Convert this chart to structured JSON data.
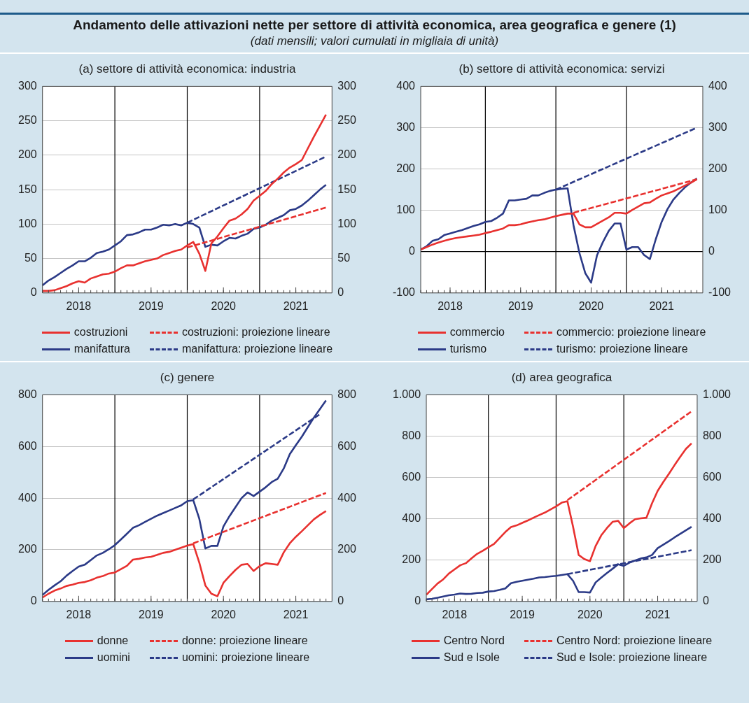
{
  "chart_data": [
    {
      "type": "other",
      "title": "Andamento delle attivazioni nette per settore di attività economica, area geografica e genere (1)",
      "subtitle": "(dati mensili; valori cumulati in migliaia di unità)"
    },
    {
      "type": "line",
      "title": "(a) settore di attività economica: industria",
      "x": [
        "2018-01",
        "2018-02",
        "2018-03",
        "2018-04",
        "2018-05",
        "2018-06",
        "2018-07",
        "2018-08",
        "2018-09",
        "2018-10",
        "2018-11",
        "2018-12",
        "2019-01",
        "2019-02",
        "2019-03",
        "2019-04",
        "2019-05",
        "2019-06",
        "2019-07",
        "2019-08",
        "2019-09",
        "2019-10",
        "2019-11",
        "2019-12",
        "2020-01",
        "2020-02",
        "2020-03",
        "2020-04",
        "2020-05",
        "2020-06",
        "2020-07",
        "2020-08",
        "2020-09",
        "2020-10",
        "2020-11",
        "2020-12",
        "2021-01",
        "2021-02",
        "2021-03",
        "2021-04",
        "2021-05",
        "2021-06",
        "2021-07",
        "2021-08",
        "2021-09",
        "2021-10",
        "2021-11",
        "2021-12"
      ],
      "xlim": [
        "2018-01",
        "2022-01"
      ],
      "xticks": [
        {
          "value": "2018-07",
          "label": "2018"
        },
        {
          "value": "2019-07",
          "label": "2019"
        },
        {
          "value": "2020-07",
          "label": "2020"
        },
        {
          "value": "2021-07",
          "label": "2021"
        }
      ],
      "ylim": [
        0,
        300
      ],
      "yticks": [
        0,
        50,
        100,
        150,
        200,
        250,
        300
      ],
      "y2lim": [
        0,
        300
      ],
      "y2ticks": [
        0,
        50,
        100,
        150,
        200,
        250,
        300
      ],
      "grid": "y",
      "legend": "bottom",
      "ref_lines": [
        {
          "axis": "x",
          "value": "2019-01",
          "color": "#000000"
        },
        {
          "axis": "x",
          "value": "2020-01",
          "color": "#000000"
        },
        {
          "axis": "x",
          "value": "2021-01",
          "color": "#000000"
        }
      ],
      "series": [
        {
          "name": "costruzioni",
          "color": "#e8312f",
          "values": [
            3,
            3,
            4,
            7,
            10,
            14,
            17,
            15,
            21,
            24,
            27,
            28,
            31,
            36,
            40,
            40,
            43,
            46,
            48,
            50,
            55,
            58,
            61,
            63,
            69,
            74,
            57,
            32,
            72,
            82,
            94,
            105,
            108,
            114,
            122,
            134,
            141,
            148,
            158,
            166,
            175,
            182,
            187,
            193,
            210,
            227,
            243,
            259
          ]
        },
        {
          "name": "costruzioni: proiezione lineare",
          "color": "#e8312f",
          "line_style": "dashed",
          "x": [
            "2020-01",
            "2021-12"
          ],
          "values": [
            66,
            124
          ]
        },
        {
          "name": "manifattura",
          "color": "#2b3a87",
          "values": [
            11,
            18,
            23,
            29,
            35,
            40,
            46,
            46,
            51,
            58,
            60,
            63,
            69,
            75,
            84,
            85,
            88,
            92,
            92,
            95,
            99,
            98,
            100,
            98,
            102,
            100,
            95,
            67,
            70,
            69,
            75,
            80,
            79,
            83,
            86,
            93,
            95,
            99,
            105,
            109,
            113,
            120,
            122,
            127,
            134,
            142,
            150,
            157
          ]
        },
        {
          "name": "manifattura: proiezione lineare",
          "color": "#2b3a87",
          "line_style": "dashed",
          "x": [
            "2020-01",
            "2021-12"
          ],
          "values": [
            102,
            198
          ]
        }
      ]
    },
    {
      "type": "line",
      "title": "(b) settore di attività economica: servizi",
      "x": [
        "2018-02",
        "2018-03",
        "2018-04",
        "2018-05",
        "2018-06",
        "2018-07",
        "2018-08",
        "2018-09",
        "2018-10",
        "2018-11",
        "2018-12",
        "2019-01",
        "2019-02",
        "2019-03",
        "2019-04",
        "2019-05",
        "2019-06",
        "2019-07",
        "2019-08",
        "2019-09",
        "2019-10",
        "2019-11",
        "2019-12",
        "2020-01",
        "2020-02",
        "2020-03",
        "2020-04",
        "2020-05",
        "2020-06",
        "2020-07",
        "2020-08",
        "2020-09",
        "2020-10",
        "2020-11",
        "2020-12",
        "2021-01",
        "2021-02",
        "2021-03",
        "2021-04",
        "2021-05",
        "2021-06",
        "2021-07",
        "2021-08",
        "2021-09",
        "2021-10",
        "2021-11",
        "2021-12",
        "2022-01"
      ],
      "xlim": [
        "2018-02",
        "2022-02"
      ],
      "xticks": [
        {
          "value": "2018-07",
          "label": "2018"
        },
        {
          "value": "2019-07",
          "label": "2019"
        },
        {
          "value": "2020-07",
          "label": "2020"
        },
        {
          "value": "2021-07",
          "label": "2021"
        }
      ],
      "ylim": [
        -100,
        400
      ],
      "yticks": [
        -100,
        0,
        100,
        200,
        300,
        400
      ],
      "y2lim": [
        -100,
        400
      ],
      "y2ticks": [
        -100,
        0,
        100,
        200,
        300,
        400
      ],
      "grid": "y",
      "legend": "bottom",
      "ref_lines": [
        {
          "axis": "x",
          "value": "2019-01",
          "color": "#000000"
        },
        {
          "axis": "x",
          "value": "2020-01",
          "color": "#000000"
        },
        {
          "axis": "x",
          "value": "2021-01",
          "color": "#000000"
        },
        {
          "axis": "y",
          "value": 0,
          "color": "#000000"
        }
      ],
      "series": [
        {
          "name": "commercio",
          "color": "#e8312f",
          "values": [
            5,
            11,
            17,
            22,
            26,
            30,
            33,
            35,
            37,
            39,
            41,
            45,
            48,
            52,
            56,
            64,
            64,
            66,
            70,
            73,
            76,
            78,
            82,
            86,
            89,
            92,
            92,
            66,
            59,
            59,
            67,
            75,
            83,
            94,
            94,
            92,
            101,
            109,
            117,
            119,
            128,
            136,
            141,
            146,
            153,
            160,
            167,
            175
          ]
        },
        {
          "name": "commercio: proiezione lineare",
          "color": "#e8312f",
          "line_style": "dashed",
          "x": [
            "2020-04",
            "2022-01"
          ],
          "values": [
            94,
            175
          ]
        },
        {
          "name": "turismo",
          "color": "#2b3a87",
          "values": [
            5,
            13,
            26,
            30,
            40,
            44,
            48,
            52,
            57,
            62,
            66,
            72,
            74,
            82,
            92,
            124,
            124,
            126,
            128,
            136,
            136,
            142,
            147,
            150,
            152,
            153,
            64,
            -3,
            -52,
            -75,
            -9,
            23,
            50,
            68,
            68,
            5,
            11,
            11,
            -8,
            -18,
            30,
            72,
            103,
            126,
            142,
            156,
            167,
            177
          ]
        },
        {
          "name": "turismo: proiezione lineare",
          "color": "#2b3a87",
          "line_style": "dashed",
          "x": [
            "2020-01",
            "2022-01"
          ],
          "values": [
            150,
            300
          ]
        }
      ]
    },
    {
      "type": "line",
      "title": "(c) genere",
      "x": [
        "2018-01",
        "2018-02",
        "2018-03",
        "2018-04",
        "2018-05",
        "2018-06",
        "2018-07",
        "2018-08",
        "2018-09",
        "2018-10",
        "2018-11",
        "2018-12",
        "2019-01",
        "2019-02",
        "2019-03",
        "2019-04",
        "2019-05",
        "2019-06",
        "2019-07",
        "2019-08",
        "2019-09",
        "2019-10",
        "2019-11",
        "2019-12",
        "2020-01",
        "2020-02",
        "2020-03",
        "2020-04",
        "2020-05",
        "2020-06",
        "2020-07",
        "2020-08",
        "2020-09",
        "2020-10",
        "2020-11",
        "2020-12",
        "2021-01",
        "2021-02",
        "2021-03",
        "2021-04",
        "2021-05",
        "2021-06",
        "2021-07",
        "2021-08",
        "2021-09",
        "2021-10",
        "2021-11",
        "2021-12"
      ],
      "xlim": [
        "2018-01",
        "2022-01"
      ],
      "xticks": [
        {
          "value": "2018-07",
          "label": "2018"
        },
        {
          "value": "2019-07",
          "label": "2019"
        },
        {
          "value": "2020-07",
          "label": "2020"
        },
        {
          "value": "2021-07",
          "label": "2021"
        }
      ],
      "ylim": [
        0,
        800
      ],
      "yticks": [
        0,
        200,
        400,
        600,
        800
      ],
      "y2lim": [
        0,
        800
      ],
      "y2ticks": [
        0,
        200,
        400,
        600,
        800
      ],
      "grid": "y",
      "legend": "bottom",
      "ref_lines": [
        {
          "axis": "x",
          "value": "2019-01",
          "color": "#000000"
        },
        {
          "axis": "x",
          "value": "2020-01",
          "color": "#000000"
        },
        {
          "axis": "x",
          "value": "2021-01",
          "color": "#000000"
        }
      ],
      "series": [
        {
          "name": "donne",
          "color": "#e8312f",
          "values": [
            15,
            30,
            42,
            50,
            60,
            65,
            72,
            75,
            82,
            92,
            98,
            108,
            112,
            125,
            138,
            162,
            165,
            170,
            173,
            180,
            188,
            192,
            200,
            208,
            216,
            222,
            150,
            62,
            30,
            20,
            72,
            98,
            122,
            142,
            145,
            118,
            137,
            148,
            145,
            142,
            190,
            225,
            250,
            272,
            295,
            318,
            335,
            350
          ]
        },
        {
          "name": "donne: proiezione lineare",
          "color": "#e8312f",
          "line_style": "dashed",
          "x": [
            "2020-02",
            "2021-12"
          ],
          "values": [
            225,
            420
          ]
        },
        {
          "name": "uomini",
          "color": "#2b3a87",
          "values": [
            25,
            45,
            62,
            78,
            100,
            118,
            135,
            142,
            160,
            178,
            188,
            202,
            218,
            240,
            262,
            285,
            295,
            308,
            320,
            332,
            342,
            352,
            362,
            372,
            388,
            392,
            320,
            205,
            215,
            215,
            290,
            330,
            365,
            400,
            422,
            408,
            425,
            442,
            462,
            475,
            515,
            570,
            605,
            638,
            675,
            712,
            745,
            778
          ]
        },
        {
          "name": "uomini: proiezione lineare",
          "color": "#2b3a87",
          "line_style": "dashed",
          "x": [
            "2020-02",
            "2021-11"
          ],
          "values": [
            395,
            725
          ]
        }
      ]
    },
    {
      "type": "line",
      "title": "(d) area geografica",
      "x": [
        "2018-02",
        "2018-03",
        "2018-04",
        "2018-05",
        "2018-06",
        "2018-07",
        "2018-08",
        "2018-09",
        "2018-10",
        "2018-11",
        "2018-12",
        "2019-01",
        "2019-02",
        "2019-03",
        "2019-04",
        "2019-05",
        "2019-06",
        "2019-07",
        "2019-08",
        "2019-09",
        "2019-10",
        "2019-11",
        "2019-12",
        "2020-01",
        "2020-02",
        "2020-03",
        "2020-04",
        "2020-05",
        "2020-06",
        "2020-07",
        "2020-08",
        "2020-09",
        "2020-10",
        "2020-11",
        "2020-12",
        "2021-01",
        "2021-02",
        "2021-03",
        "2021-04",
        "2021-05",
        "2021-06",
        "2021-07",
        "2021-08",
        "2021-09",
        "2021-10",
        "2021-11",
        "2021-12",
        "2022-01"
      ],
      "xlim": [
        "2018-02",
        "2022-02"
      ],
      "xticks": [
        {
          "value": "2018-07",
          "label": "2018"
        },
        {
          "value": "2019-07",
          "label": "2019"
        },
        {
          "value": "2020-07",
          "label": "2020"
        },
        {
          "value": "2021-07",
          "label": "2021"
        }
      ],
      "ylim": [
        0,
        1000
      ],
      "yticks": [
        0,
        200,
        400,
        600,
        800,
        {
          "value": 1000,
          "label": "1.000"
        }
      ],
      "y2lim": [
        0,
        1000
      ],
      "y2ticks": [
        0,
        200,
        400,
        600,
        800,
        {
          "value": 1000,
          "label": "1.000"
        }
      ],
      "grid": "y",
      "legend": "bottom",
      "ref_lines": [
        {
          "axis": "x",
          "value": "2019-01",
          "color": "#000000"
        },
        {
          "axis": "x",
          "value": "2020-01",
          "color": "#000000"
        },
        {
          "axis": "x",
          "value": "2021-01",
          "color": "#000000"
        }
      ],
      "series": [
        {
          "name": "Centro Nord",
          "color": "#e8312f",
          "values": [
            32,
            60,
            87,
            107,
            135,
            155,
            175,
            185,
            208,
            230,
            245,
            262,
            278,
            307,
            336,
            360,
            368,
            380,
            392,
            405,
            418,
            430,
            445,
            460,
            478,
            485,
            362,
            225,
            205,
            195,
            268,
            320,
            355,
            385,
            390,
            355,
            378,
            398,
            402,
            405,
            475,
            535,
            578,
            618,
            660,
            700,
            738,
            765
          ]
        },
        {
          "name": "Centro Nord: proiezione lineare",
          "color": "#e8312f",
          "line_style": "dashed",
          "x": [
            "2020-03",
            "2022-01"
          ],
          "values": [
            490,
            920
          ]
        },
        {
          "name": "Sud e Isole",
          "color": "#2b3a87",
          "values": [
            10,
            13,
            18,
            24,
            30,
            33,
            38,
            36,
            37,
            41,
            42,
            48,
            50,
            56,
            63,
            88,
            95,
            100,
            105,
            110,
            116,
            118,
            121,
            124,
            128,
            132,
            100,
            45,
            45,
            43,
            92,
            115,
            137,
            158,
            180,
            172,
            188,
            198,
            208,
            213,
            225,
            258,
            275,
            292,
            310,
            327,
            344,
            361
          ]
        },
        {
          "name": "Sud e Isole: proiezione lineare",
          "color": "#2b3a87",
          "line_style": "dashed",
          "x": [
            "2020-03",
            "2022-01"
          ],
          "values": [
            132,
            248
          ]
        }
      ]
    }
  ]
}
